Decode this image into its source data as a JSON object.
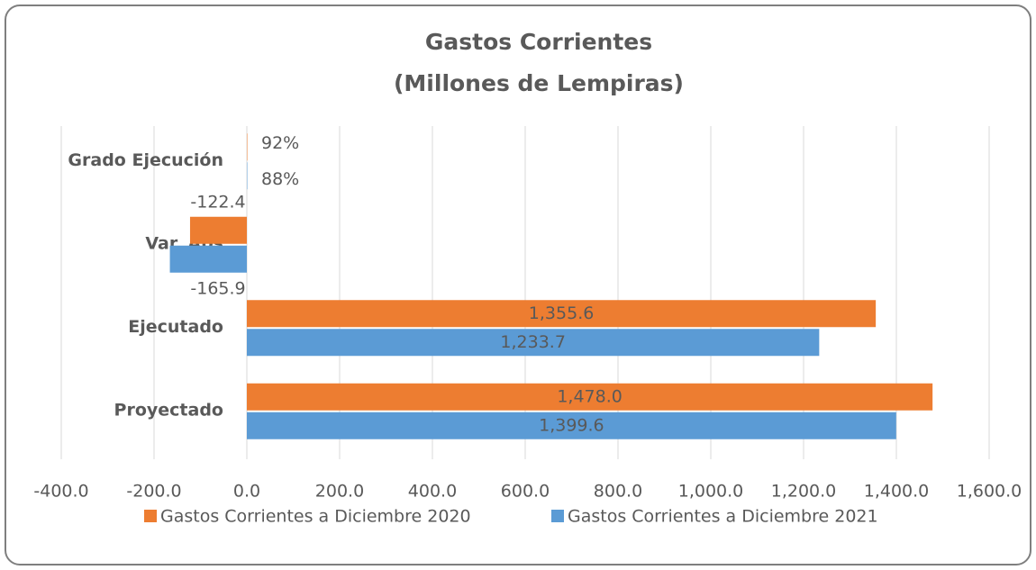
{
  "chart_data": {
    "type": "hbar",
    "title": "Gastos Corrientes",
    "subtitle": "(Millones de Lempiras)",
    "categories": [
      "Proyectado",
      "Ejecutado",
      "Var. Abs",
      "Grado Ejecución"
    ],
    "series": [
      {
        "name": "Gastos Corrientes a Diciembre 2020",
        "color": "#ed7d31",
        "values": [
          1478.0,
          1355.6,
          -122.4,
          0.92
        ],
        "value_labels": [
          "1,478.0",
          "1,355.6",
          "-122.4",
          "92%"
        ]
      },
      {
        "name": "Gastos Corrientes a Diciembre 2021",
        "color": "#5b9bd5",
        "values": [
          1399.6,
          1233.7,
          -165.9,
          0.88
        ],
        "value_labels": [
          "1,399.6",
          "1,233.7",
          "-165.9",
          "88%"
        ]
      }
    ],
    "xlim": [
      -400,
      1600
    ],
    "xticks": [
      {
        "value": -400,
        "label": "-400.0"
      },
      {
        "value": -200,
        "label": "-200.0"
      },
      {
        "value": 0,
        "label": "0.0"
      },
      {
        "value": 200,
        "label": "200.0"
      },
      {
        "value": 400,
        "label": "400.0"
      },
      {
        "value": 600,
        "label": "600.0"
      },
      {
        "value": 800,
        "label": "800.0"
      },
      {
        "value": 1000,
        "label": "1,000.0"
      },
      {
        "value": 1200,
        "label": "1,200.0"
      },
      {
        "value": 1400,
        "label": "1,400.0"
      },
      {
        "value": 1600,
        "label": "1,600.0"
      }
    ],
    "grid": true,
    "legend": "bottom"
  }
}
